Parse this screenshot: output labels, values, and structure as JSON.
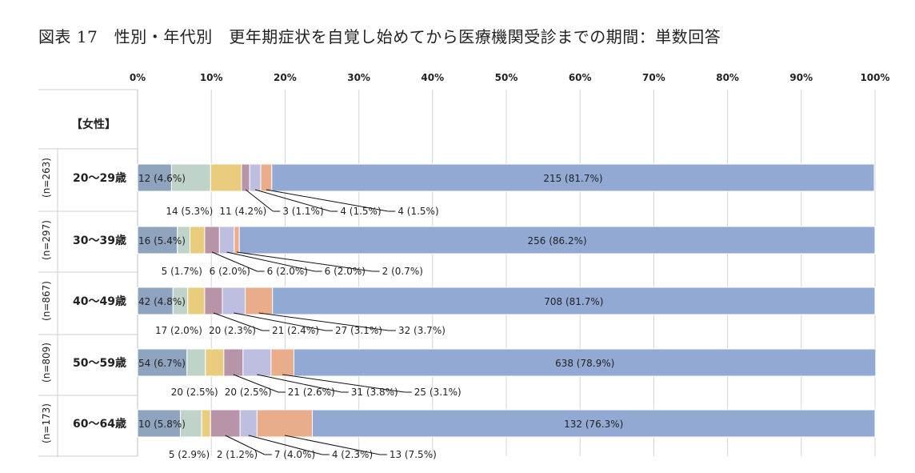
{
  "title": "図表 17　性別・年代別　更年期症状を自覚し始めてから医療機関受診までの期間：単数回答",
  "chart_data": {
    "type": "bar",
    "orientation": "horizontal",
    "stacked": true,
    "percent_scale": true,
    "xlim": [
      0,
      100
    ],
    "x_ticks": [
      "0%",
      "10%",
      "20%",
      "30%",
      "40%",
      "50%",
      "60%",
      "70%",
      "80%",
      "90%",
      "100%"
    ],
    "grid": true,
    "legend": "none",
    "group_label": "【女性】",
    "colors": [
      "#8EA3BD",
      "#BFD3C8",
      "#E9CC7E",
      "#B894A9",
      "#BDBEE0",
      "#EAAD8C",
      "#92A9D3"
    ],
    "categories": [
      "20～29歳",
      "30～39歳",
      "40～49歳",
      "50～59歳",
      "60～64歳"
    ],
    "n_labels": [
      "(n=263)",
      "(n=297)",
      "(n=867)",
      "(n=809)",
      "(n=173)"
    ],
    "series": [
      {
        "values": [
          4.6,
          5.4,
          4.8,
          6.7,
          5.8
        ],
        "labels": [
          "12 (4.6%)",
          "16 (5.4%)",
          "42 (4.8%)",
          "54 (6.7%)",
          "10 (5.8%)"
        ]
      },
      {
        "values": [
          5.3,
          1.7,
          2.0,
          2.5,
          2.9
        ],
        "labels": [
          "14 (5.3%)",
          "5 (1.7%)",
          "17 (2.0%)",
          "20 (2.5%)",
          "5 (2.9%)"
        ]
      },
      {
        "values": [
          4.2,
          2.0,
          2.3,
          2.5,
          1.2
        ],
        "labels": [
          "11 (4.2%)",
          "6 (2.0%)",
          "20 (2.3%)",
          "20 (2.5%)",
          "2 (1.2%)"
        ]
      },
      {
        "values": [
          1.1,
          2.0,
          2.4,
          2.6,
          4.0
        ],
        "labels": [
          "3 (1.1%)",
          "6 (2.0%)",
          "21 (2.4%)",
          "21 (2.6%)",
          "7 (4.0%)"
        ]
      },
      {
        "values": [
          1.5,
          2.0,
          3.1,
          3.8,
          2.3
        ],
        "labels": [
          "4 (1.5%)",
          "6 (2.0%)",
          "27 (3.1%)",
          "31 (3.8%)",
          "4 (2.3%)"
        ]
      },
      {
        "values": [
          1.5,
          0.7,
          3.7,
          3.1,
          7.5
        ],
        "labels": [
          "4 (1.5%)",
          "2 (0.7%)",
          "32 (3.7%)",
          "25 (3.1%)",
          "13 (7.5%)"
        ]
      },
      {
        "values": [
          81.7,
          86.2,
          81.7,
          78.9,
          76.3
        ],
        "labels": [
          "215 (81.7%)",
          "256 (86.2%)",
          "708 (81.7%)",
          "638 (78.9%)",
          "132 (76.3%)"
        ]
      }
    ]
  }
}
